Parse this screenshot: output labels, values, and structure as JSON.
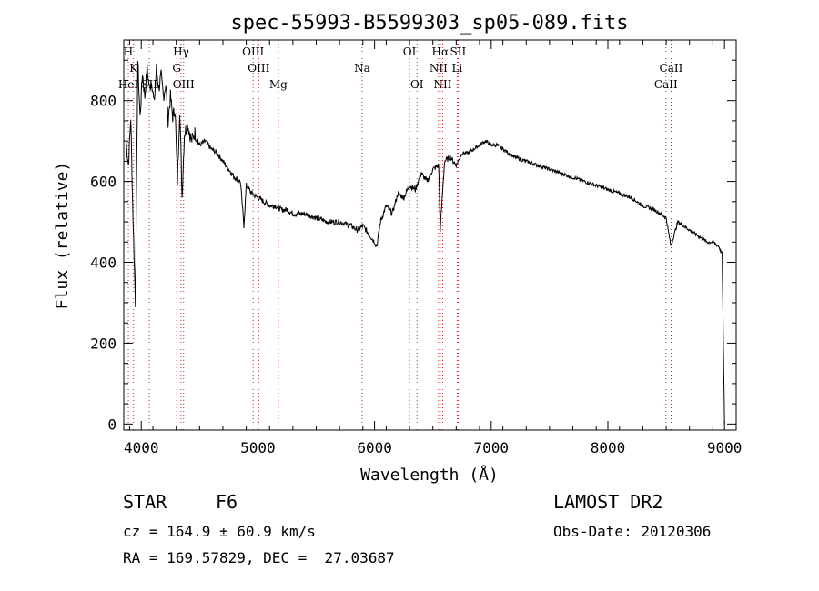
{
  "chart_data": {
    "type": "line",
    "title": "spec-55993-B5599303_sp05-089.fits",
    "xlabel": "Wavelength (Å)",
    "ylabel": "Flux (relative)",
    "xlim": [
      3850,
      9100
    ],
    "ylim": [
      -15,
      950
    ],
    "xticks": [
      4000,
      5000,
      6000,
      7000,
      8000,
      9000
    ],
    "yticks": [
      0,
      200,
      400,
      600,
      800
    ],
    "grid": false,
    "series": [
      {
        "x": [
          3870,
          3890,
          3910,
          3930,
          3950,
          3970,
          3990,
          4010,
          4030,
          4050,
          4070,
          4090,
          4110,
          4130,
          4150,
          4170,
          4190,
          4210,
          4230,
          4250,
          4270,
          4290,
          4310,
          4330,
          4350,
          4370,
          4400,
          4430,
          4460,
          4500,
          4550,
          4600,
          4650,
          4700,
          4750,
          4800,
          4850,
          4880,
          4900,
          4950,
          5000,
          5050,
          5100,
          5150,
          5200,
          5250,
          5300,
          5400,
          5500,
          5600,
          5700,
          5800,
          5850,
          5900,
          5950,
          6000,
          6020,
          6050,
          6100,
          6150,
          6200,
          6250,
          6300,
          6350,
          6400,
          6450,
          6500,
          6550,
          6563,
          6600,
          6650,
          6700,
          6750,
          6800,
          6850,
          6900,
          6950,
          7000,
          7050,
          7100,
          7150,
          7200,
          7300,
          7400,
          7500,
          7600,
          7700,
          7800,
          7900,
          8000,
          8100,
          8200,
          8300,
          8400,
          8450,
          8500,
          8540,
          8600,
          8650,
          8700,
          8750,
          8800,
          8850,
          8900,
          8950,
          8980,
          8990,
          9000
        ],
        "values": [
          700,
          640,
          760,
          500,
          300,
          900,
          760,
          870,
          810,
          880,
          830,
          850,
          790,
          880,
          830,
          860,
          810,
          840,
          750,
          810,
          760,
          780,
          600,
          780,
          560,
          720,
          740,
          700,
          720,
          690,
          700,
          680,
          670,
          650,
          630,
          610,
          600,
          490,
          590,
          570,
          560,
          550,
          540,
          540,
          530,
          530,
          520,
          520,
          510,
          500,
          500,
          490,
          480,
          490,
          470,
          450,
          440,
          500,
          540,
          520,
          570,
          560,
          590,
          580,
          620,
          600,
          630,
          640,
          480,
          650,
          660,
          640,
          670,
          670,
          680,
          690,
          700,
          690,
          690,
          680,
          670,
          660,
          650,
          640,
          630,
          620,
          610,
          600,
          590,
          580,
          570,
          560,
          540,
          530,
          520,
          510,
          440,
          500,
          490,
          480,
          470,
          460,
          450,
          450,
          440,
          420,
          200,
          0
        ]
      }
    ],
    "spectral_lines": [
      {
        "label": "H",
        "wavelength": 3889,
        "row": 0
      },
      {
        "label": "K",
        "wavelength": 3934,
        "row": 1
      },
      {
        "label": "HeI",
        "wavelength": 3889,
        "row": 2
      },
      {
        "label": "SII",
        "wavelength": 4069,
        "row": 2
      },
      {
        "label": "Hγ",
        "wavelength": 4341,
        "row": 0
      },
      {
        "label": "G",
        "wavelength": 4304,
        "row": 1
      },
      {
        "label": "OIII",
        "wavelength": 4363,
        "row": 2
      },
      {
        "label": "OIII",
        "wavelength": 4959,
        "row": 0
      },
      {
        "label": "OIII",
        "wavelength": 5007,
        "row": 1
      },
      {
        "label": "Mg",
        "wavelength": 5175,
        "row": 2
      },
      {
        "label": "Na",
        "wavelength": 5893,
        "row": 1
      },
      {
        "label": "OI",
        "wavelength": 6300,
        "row": 0
      },
      {
        "label": "OI",
        "wavelength": 6364,
        "row": 2
      },
      {
        "label": "Hα",
        "wavelength": 6563,
        "row": 0
      },
      {
        "label": "SII",
        "wavelength": 6716,
        "row": 0
      },
      {
        "label": "NII",
        "wavelength": 6548,
        "row": 1
      },
      {
        "label": "Li",
        "wavelength": 6708,
        "row": 1
      },
      {
        "label": "NII",
        "wavelength": 6584,
        "row": 2
      },
      {
        "label": "CaII",
        "wavelength": 8542,
        "row": 1
      },
      {
        "label": "CaII",
        "wavelength": 8498,
        "row": 2
      }
    ],
    "colors": {
      "spectrum": "#000000",
      "line_markers": "#cc2222",
      "axes": "#000000"
    }
  },
  "info": {
    "class": "STAR",
    "subclass": "F6",
    "survey": "LAMOST DR2",
    "redshift": "cz = 164.9 ± 60.9 km/s",
    "obs_date": "Obs-Date: 20120306",
    "coords": "RA = 169.57829, DEC =  27.03687"
  }
}
